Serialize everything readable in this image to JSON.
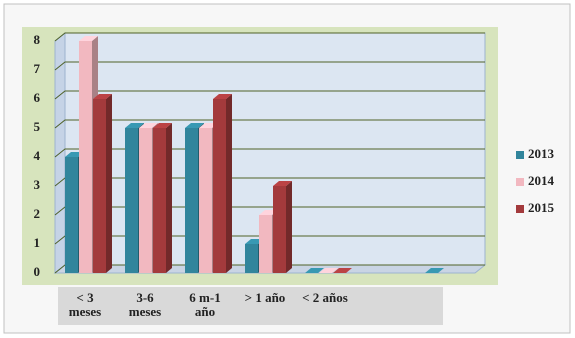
{
  "chart_data": {
    "type": "bar",
    "categories": [
      "< 3 meses",
      "3-6 meses",
      "6 m-1 año",
      "> 1 año",
      "< 2 años",
      null,
      null
    ],
    "series": [
      {
        "name": "2013",
        "color": "#31859c",
        "values": [
          4,
          5,
          5,
          1,
          0,
          null,
          0
        ]
      },
      {
        "name": "2014",
        "color": "#f2b8c0",
        "values": [
          8,
          5,
          5,
          2,
          0,
          null,
          null
        ]
      },
      {
        "name": "2015",
        "color": "#a33a3c",
        "values": [
          6,
          5,
          6,
          3,
          0,
          null,
          null
        ]
      }
    ],
    "ylim": [
      0,
      8
    ],
    "yticks": [
      0,
      1,
      2,
      3,
      4,
      5,
      6,
      7,
      8
    ],
    "grid": true,
    "legend": "right"
  }
}
